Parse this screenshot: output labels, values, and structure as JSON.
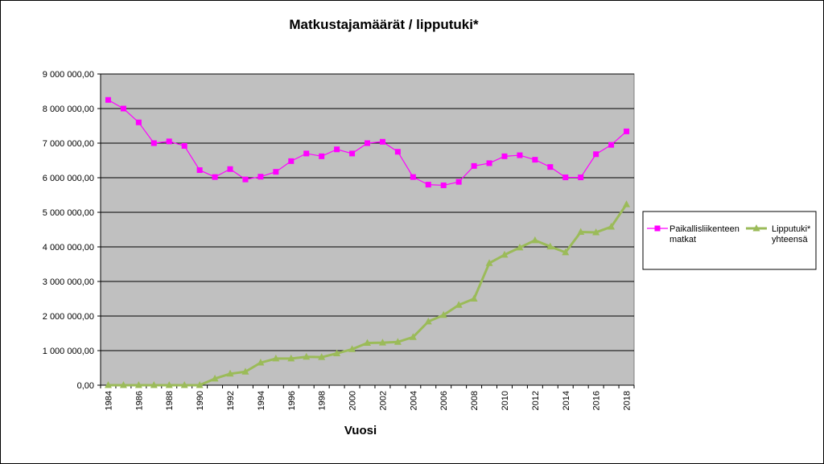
{
  "chart_data": {
    "type": "line",
    "title": "Matkustajamäärät / lipputuki*",
    "xlabel": "Vuosi",
    "ylabel": "",
    "ylim": [
      0,
      9000000
    ],
    "y_ticks": [
      "0,00",
      "1 000 000,00",
      "2 000 000,00",
      "3 000 000,00",
      "4 000 000,00",
      "5 000 000,00",
      "6 000 000,00",
      "7 000 000,00",
      "8 000 000,00",
      "9 000 000,00"
    ],
    "x_tick_labels": [
      "1984",
      "1986",
      "1988",
      "1990",
      "1992",
      "1994",
      "1996",
      "1998",
      "2000",
      "2002",
      "2004",
      "2006",
      "2008",
      "2010",
      "2012",
      "2014",
      "2016",
      "2018"
    ],
    "grid": "horizontal",
    "plot_background": "#c0c0c0",
    "legend_position": "right",
    "x": [
      1984,
      1985,
      1986,
      1987,
      1988,
      1989,
      1990,
      1991,
      1992,
      1993,
      1994,
      1995,
      1996,
      1997,
      1998,
      1999,
      2000,
      2001,
      2002,
      2003,
      2004,
      2005,
      2006,
      2007,
      2008,
      2009,
      2010,
      2011,
      2012,
      2013,
      2014,
      2015,
      2016,
      2017,
      2018
    ],
    "series": [
      {
        "name": "Paikallisliikenteen matkat",
        "legend_lines": [
          "Paikallisliikenteen",
          "matkat"
        ],
        "color": "#ff00ff",
        "marker": "square",
        "values": [
          8250000,
          8000000,
          7600000,
          7000000,
          7050000,
          6920000,
          6220000,
          6020000,
          6250000,
          5950000,
          6030000,
          6170000,
          6480000,
          6700000,
          6620000,
          6820000,
          6700000,
          7000000,
          7040000,
          6750000,
          6020000,
          5800000,
          5780000,
          5880000,
          6340000,
          6420000,
          6620000,
          6650000,
          6520000,
          6310000,
          6010000,
          6010000,
          6680000,
          6950000,
          7340000
        ]
      },
      {
        "name": "Lipputuki* yhteensä",
        "legend_lines": [
          "Lipputuki*",
          "yhteensä"
        ],
        "color": "#9bbb59",
        "marker": "triangle",
        "values": [
          0,
          0,
          0,
          0,
          0,
          0,
          0,
          190000,
          330000,
          390000,
          650000,
          770000,
          770000,
          820000,
          810000,
          920000,
          1040000,
          1220000,
          1230000,
          1250000,
          1390000,
          1840000,
          2030000,
          2320000,
          2500000,
          3530000,
          3770000,
          3980000,
          4190000,
          4010000,
          3840000,
          4430000,
          4420000,
          4580000,
          5230000
        ]
      }
    ]
  }
}
